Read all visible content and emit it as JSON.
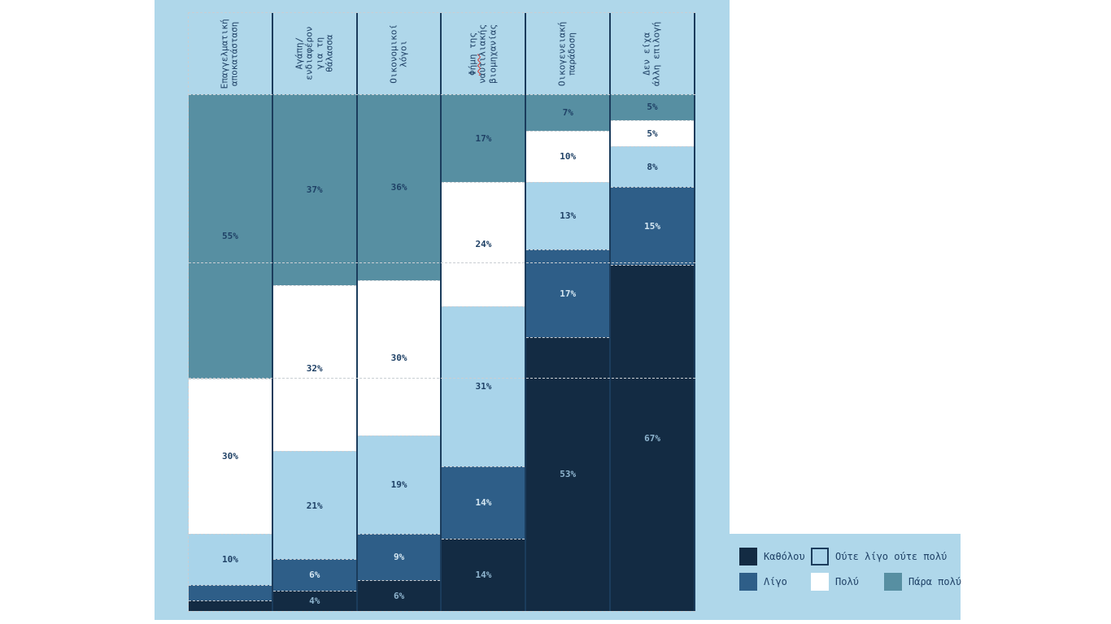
{
  "page": {
    "background": "#FFFFFF",
    "plot_background": "#AFD7EA",
    "separator_color": "#1B3C5C",
    "dashed_line_color": "#C9CED3",
    "dark_text_color": "#1F4166"
  },
  "chart_data": {
    "type": "bar",
    "variant": "100_percent_stacked_column",
    "title": "",
    "xlabel": "",
    "ylabel": "",
    "ylim": [
      0,
      100
    ],
    "grid": false,
    "legend_position": "bottom-right",
    "categories": [
      "Επαγγελματική αποκατάσταση",
      "Αγάπη/ ενδιαφέρον για τη θάλασσα",
      "Οικονομικοί λόγοι",
      "Φήμη της ναυτιλιακής βιομηχανίας",
      "Οικογενειακή παράδοση",
      "Δεν είχα άλλη επιλογή"
    ],
    "category_label_lines": [
      "Επαγγελματική\nαποκατάσταση",
      "Αγάπη/\nενδιαφέρον\nγια τη\nθάλασσα",
      "Οικονομικοί\nλόγοι",
      "Φήμη της\nναυτιλιακής\nβιομηχανίας",
      "Οικογενειακή\nπαράδοση",
      "Δεν είχα\nάλλη επιλογή"
    ],
    "spellcheck_marked_header": {
      "category_index": 3,
      "word": "Φήμη",
      "rest": " της\nναυτιλιακής\nβιομηχανίας",
      "squiggle_color": "#D93025"
    },
    "series_bottom_to_top": [
      {
        "name": "Καθόλου",
        "color": "#132B43",
        "values": [
          2,
          4,
          6,
          14,
          53,
          67
        ],
        "labels": [
          "",
          "4%",
          "6%",
          "14%",
          "53%",
          "67%"
        ],
        "label_color": "#8FB5CF"
      },
      {
        "name": "Λίγο",
        "color": "#2E5E88",
        "values": [
          3,
          6,
          9,
          14,
          17,
          15
        ],
        "labels": [
          "",
          "6%",
          "9%",
          "14%",
          "17%",
          "15%"
        ],
        "label_color": "#D5E7F2"
      },
      {
        "name": "Ούτε λίγο ούτε πολύ",
        "color": "#A9D4EA",
        "values": [
          10,
          21,
          19,
          31,
          13,
          8
        ],
        "labels": [
          "10%",
          "21%",
          "19%",
          "31%",
          "13%",
          "8%"
        ],
        "label_color": "#1F4166"
      },
      {
        "name": "Πολύ",
        "color": "#FFFFFF",
        "values": [
          30,
          32,
          30,
          24,
          10,
          5
        ],
        "labels": [
          "30%",
          "32%",
          "30%",
          "24%",
          "10%",
          "5%"
        ],
        "label_color": "#1F4166"
      },
      {
        "name": "Πάρα πολύ",
        "color": "#578FA2",
        "values": [
          55,
          37,
          36,
          17,
          7,
          5
        ],
        "labels": [
          "55%",
          "37%",
          "36%",
          "17%",
          "7%",
          "5%"
        ],
        "label_color": "#1F4166"
      }
    ],
    "reference_lines": [
      {
        "orientation": "horizontal",
        "percent_from_bottom": 67.6,
        "style": "dashed"
      },
      {
        "orientation": "horizontal",
        "percent_from_bottom": 45.3,
        "style": "dashed"
      }
    ]
  },
  "legend": {
    "items": [
      {
        "label": "Καθόλου",
        "color": "#132B43",
        "bordered": false,
        "row": 1,
        "col": 1
      },
      {
        "label": "Ούτε λίγο ούτε πολύ",
        "color": "#A9D4EA",
        "bordered": true,
        "row": 1,
        "col": 2
      },
      {
        "label": "Λίγο",
        "color": "#2E5E88",
        "bordered": false,
        "row": 2,
        "col": 1
      },
      {
        "label": "Πολύ",
        "color": "#FFFFFF",
        "bordered": false,
        "row": 2,
        "col": 2
      },
      {
        "label": "Πάρα πολύ",
        "color": "#578FA2",
        "bordered": false,
        "row": 2,
        "col": 3
      }
    ]
  }
}
